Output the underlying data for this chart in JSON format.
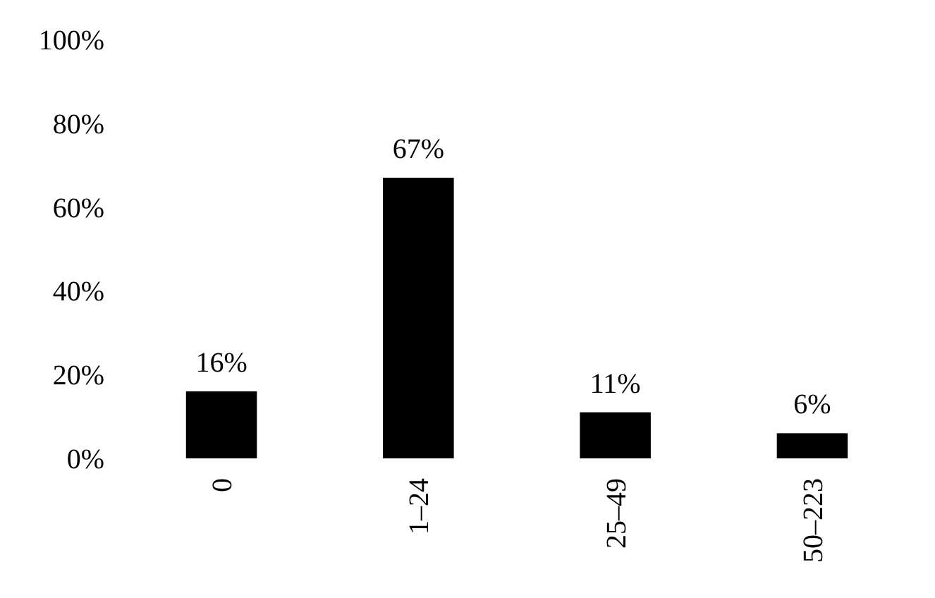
{
  "chart_data": {
    "type": "bar",
    "categories": [
      "0",
      "1–24",
      "25–49",
      "50–223"
    ],
    "values": [
      16,
      67,
      11,
      6
    ],
    "color": "#000000",
    "value_labels": [
      "16%",
      "67%",
      "11%",
      "6%"
    ],
    "ylim": [
      0,
      100
    ],
    "yticks": [
      {
        "value": 0,
        "label": "0%"
      },
      {
        "value": 20,
        "label": "20%"
      },
      {
        "value": 40,
        "label": "40%"
      },
      {
        "value": 60,
        "label": "60%"
      },
      {
        "value": 80,
        "label": "80%"
      },
      {
        "value": 100,
        "label": "100%"
      }
    ]
  }
}
